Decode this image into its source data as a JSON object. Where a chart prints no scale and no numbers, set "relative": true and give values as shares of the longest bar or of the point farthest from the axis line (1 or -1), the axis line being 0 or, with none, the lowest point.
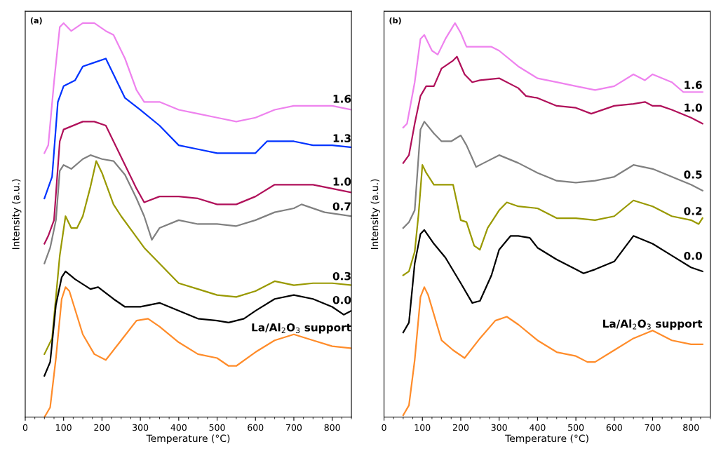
{
  "chart_data": [
    {
      "type": "line",
      "title": "(a)",
      "xlabel": "Temperature (°C)",
      "ylabel": "Intensity (a.u.)",
      "relative": true,
      "xlim": [
        0,
        850
      ],
      "xticks": [
        0,
        100,
        200,
        300,
        400,
        500,
        600,
        700,
        800
      ],
      "grid": false,
      "legend": false,
      "tick_labels": "x",
      "series": [
        {
          "name": "1.6",
          "color": "#ee82ee",
          "x": [
            50,
            60,
            75,
            90,
            100,
            120,
            150,
            180,
            210,
            230,
            260,
            290,
            310,
            350,
            400,
            450,
            500,
            550,
            600,
            650,
            700,
            750,
            800,
            850
          ],
          "values": [
            0.67,
            0.69,
            0.85,
            0.99,
            1.0,
            0.98,
            1.0,
            1.0,
            0.98,
            0.97,
            0.91,
            0.83,
            0.8,
            0.8,
            0.78,
            0.77,
            0.76,
            0.75,
            0.76,
            0.78,
            0.79,
            0.79,
            0.79,
            0.78
          ]
        },
        {
          "name": "1.3",
          "color": "#0033ff",
          "x": [
            50,
            70,
            85,
            100,
            130,
            150,
            180,
            210,
            230,
            260,
            300,
            350,
            400,
            450,
            500,
            550,
            600,
            630,
            700,
            750,
            800,
            850
          ],
          "values": [
            0.555,
            0.61,
            0.8,
            0.84,
            0.855,
            0.89,
            0.9,
            0.91,
            0.87,
            0.81,
            0.78,
            0.74,
            0.69,
            0.68,
            0.67,
            0.67,
            0.67,
            0.7,
            0.7,
            0.69,
            0.69,
            0.685
          ]
        },
        {
          "name": "1.0",
          "color": "#b0105a",
          "x": [
            50,
            60,
            75,
            90,
            100,
            150,
            180,
            210,
            250,
            290,
            310,
            350,
            400,
            450,
            500,
            550,
            600,
            650,
            700,
            750,
            800,
            850
          ],
          "values": [
            0.44,
            0.46,
            0.5,
            0.7,
            0.73,
            0.75,
            0.75,
            0.74,
            0.66,
            0.58,
            0.545,
            0.56,
            0.56,
            0.555,
            0.54,
            0.54,
            0.56,
            0.59,
            0.59,
            0.59,
            0.58,
            0.57
          ]
        },
        {
          "name": "0.7",
          "color": "#808080",
          "x": [
            50,
            65,
            80,
            90,
            100,
            120,
            150,
            170,
            200,
            230,
            260,
            290,
            310,
            330,
            350,
            400,
            450,
            500,
            550,
            600,
            650,
            700,
            720,
            780,
            850
          ],
          "values": [
            0.39,
            0.43,
            0.5,
            0.625,
            0.64,
            0.63,
            0.655,
            0.665,
            0.655,
            0.65,
            0.615,
            0.555,
            0.51,
            0.45,
            0.48,
            0.5,
            0.49,
            0.49,
            0.485,
            0.5,
            0.52,
            0.53,
            0.54,
            0.52,
            0.51
          ]
        },
        {
          "name": "0.3",
          "color": "#999900",
          "x": [
            50,
            70,
            90,
            105,
            120,
            135,
            150,
            170,
            185,
            200,
            230,
            250,
            280,
            310,
            350,
            400,
            450,
            500,
            550,
            600,
            650,
            700,
            750,
            800,
            850
          ],
          "values": [
            0.16,
            0.2,
            0.41,
            0.51,
            0.48,
            0.48,
            0.51,
            0.585,
            0.65,
            0.62,
            0.54,
            0.51,
            0.47,
            0.43,
            0.39,
            0.34,
            0.325,
            0.31,
            0.305,
            0.32,
            0.345,
            0.335,
            0.34,
            0.34,
            0.335
          ]
        },
        {
          "name": "0.0",
          "color": "#000000",
          "x": [
            50,
            65,
            80,
            95,
            105,
            130,
            170,
            190,
            230,
            260,
            300,
            350,
            400,
            450,
            500,
            530,
            570,
            600,
            650,
            700,
            750,
            800,
            830,
            850
          ],
          "values": [
            0.105,
            0.14,
            0.285,
            0.355,
            0.37,
            0.35,
            0.325,
            0.33,
            0.3,
            0.28,
            0.28,
            0.29,
            0.27,
            0.25,
            0.245,
            0.24,
            0.25,
            0.27,
            0.3,
            0.31,
            0.3,
            0.28,
            0.26,
            0.27
          ]
        },
        {
          "name": "La/Al$_{2}$O$_{3}$ support",
          "color": "#ff8c2a",
          "x": [
            50,
            65,
            80,
            95,
            105,
            115,
            150,
            180,
            210,
            250,
            290,
            320,
            350,
            400,
            450,
            500,
            530,
            550,
            600,
            650,
            700,
            750,
            800,
            850
          ],
          "values": [
            0.0,
            0.025,
            0.15,
            0.3,
            0.33,
            0.32,
            0.21,
            0.16,
            0.145,
            0.195,
            0.245,
            0.25,
            0.23,
            0.19,
            0.16,
            0.15,
            0.13,
            0.13,
            0.165,
            0.195,
            0.21,
            0.195,
            0.18,
            0.175
          ]
        }
      ]
    },
    {
      "type": "line",
      "title": "(b)",
      "xlabel": "Temperature (°C)",
      "ylabel": "Intensity (a.u.)",
      "relative": true,
      "xlim": [
        0,
        850
      ],
      "xticks": [
        0,
        100,
        200,
        300,
        400,
        500,
        600,
        700,
        800
      ],
      "grid": false,
      "legend": false,
      "tick_labels": "x",
      "series": [
        {
          "name": "1.6",
          "color": "#ee82ee",
          "x": [
            50,
            60,
            80,
            95,
            105,
            125,
            140,
            160,
            185,
            200,
            215,
            250,
            280,
            300,
            350,
            400,
            450,
            500,
            550,
            600,
            650,
            680,
            700,
            750,
            780,
            830
          ],
          "values": [
            0.735,
            0.745,
            0.85,
            0.96,
            0.97,
            0.93,
            0.92,
            0.96,
            1.0,
            0.975,
            0.94,
            0.94,
            0.94,
            0.93,
            0.89,
            0.86,
            0.85,
            0.84,
            0.83,
            0.84,
            0.87,
            0.855,
            0.87,
            0.85,
            0.825,
            0.825
          ]
        },
        {
          "name": "1.0",
          "color": "#b0105a",
          "x": [
            50,
            65,
            80,
            95,
            110,
            130,
            150,
            180,
            190,
            210,
            230,
            250,
            300,
            350,
            370,
            400,
            450,
            500,
            540,
            600,
            650,
            680,
            700,
            720,
            750,
            800,
            830
          ],
          "values": [
            0.645,
            0.665,
            0.745,
            0.815,
            0.84,
            0.84,
            0.885,
            0.905,
            0.915,
            0.87,
            0.85,
            0.855,
            0.86,
            0.835,
            0.815,
            0.81,
            0.79,
            0.785,
            0.77,
            0.79,
            0.795,
            0.8,
            0.79,
            0.79,
            0.78,
            0.76,
            0.745
          ]
        },
        {
          "name": "0.5",
          "color": "#808080",
          "x": [
            50,
            65,
            80,
            95,
            105,
            130,
            150,
            175,
            200,
            215,
            240,
            260,
            300,
            350,
            400,
            450,
            500,
            550,
            600,
            650,
            700,
            750,
            800,
            830
          ],
          "values": [
            0.48,
            0.495,
            0.525,
            0.73,
            0.75,
            0.72,
            0.7,
            0.7,
            0.715,
            0.69,
            0.635,
            0.645,
            0.665,
            0.645,
            0.62,
            0.6,
            0.595,
            0.6,
            0.61,
            0.64,
            0.63,
            0.61,
            0.59,
            0.575
          ]
        },
        {
          "name": "0.2",
          "color": "#999900",
          "x": [
            50,
            65,
            80,
            90,
            100,
            110,
            130,
            160,
            180,
            200,
            215,
            235,
            250,
            270,
            300,
            320,
            350,
            400,
            450,
            500,
            550,
            600,
            650,
            700,
            750,
            800,
            820,
            830
          ],
          "values": [
            0.36,
            0.37,
            0.42,
            0.515,
            0.64,
            0.62,
            0.59,
            0.59,
            0.59,
            0.5,
            0.495,
            0.435,
            0.425,
            0.48,
            0.525,
            0.545,
            0.535,
            0.53,
            0.505,
            0.505,
            0.5,
            0.51,
            0.55,
            0.535,
            0.51,
            0.5,
            0.49,
            0.505
          ]
        },
        {
          "name": "0.0",
          "color": "#000000",
          "x": [
            50,
            65,
            80,
            95,
            105,
            130,
            160,
            200,
            230,
            250,
            280,
            300,
            330,
            350,
            380,
            400,
            450,
            500,
            520,
            550,
            600,
            650,
            700,
            750,
            800,
            830
          ],
          "values": [
            0.215,
            0.24,
            0.39,
            0.465,
            0.475,
            0.44,
            0.405,
            0.34,
            0.29,
            0.295,
            0.36,
            0.425,
            0.46,
            0.46,
            0.455,
            0.43,
            0.4,
            0.375,
            0.365,
            0.375,
            0.395,
            0.46,
            0.44,
            0.41,
            0.38,
            0.37
          ]
        },
        {
          "name": "La/Al$_{2}$O$_{3}$ support",
          "color": "#ff8c2a",
          "x": [
            50,
            65,
            80,
            95,
            105,
            115,
            150,
            180,
            210,
            250,
            290,
            320,
            350,
            400,
            450,
            500,
            530,
            550,
            600,
            650,
            700,
            750,
            800,
            830
          ],
          "values": [
            0.005,
            0.03,
            0.145,
            0.305,
            0.33,
            0.31,
            0.195,
            0.17,
            0.15,
            0.2,
            0.245,
            0.255,
            0.235,
            0.195,
            0.165,
            0.155,
            0.14,
            0.14,
            0.17,
            0.2,
            0.22,
            0.195,
            0.185,
            0.185
          ]
        }
      ]
    }
  ]
}
